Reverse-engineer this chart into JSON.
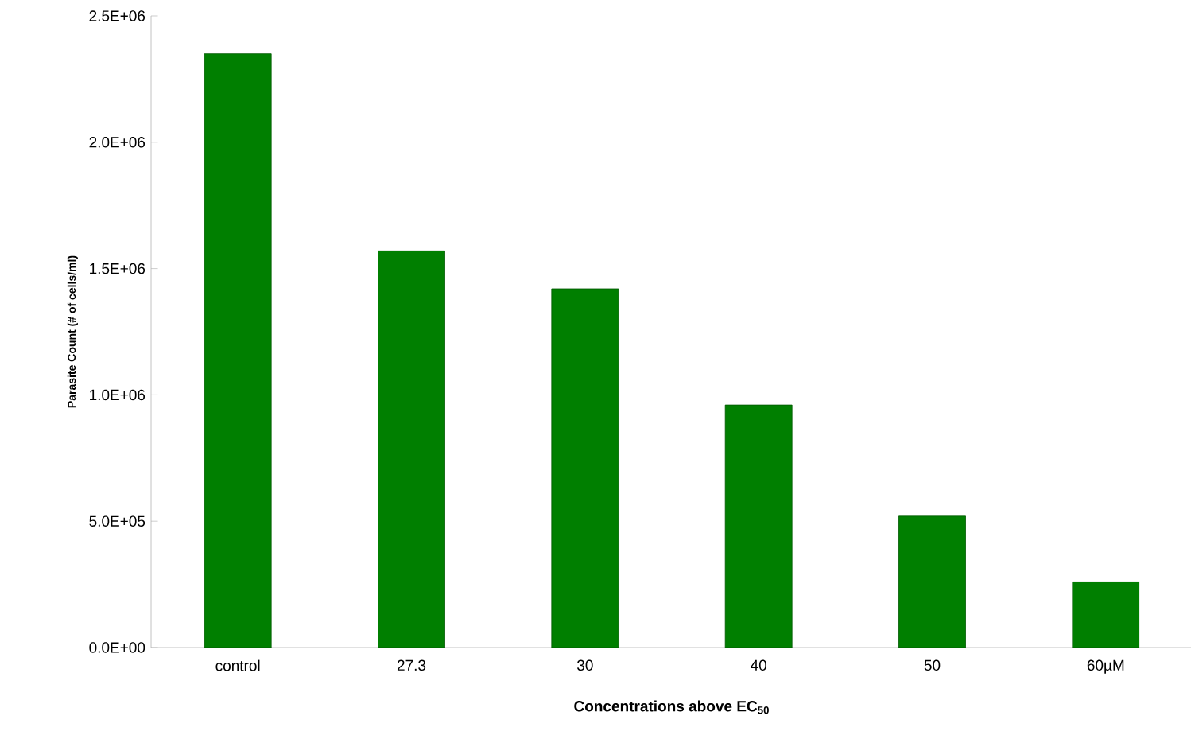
{
  "chart_data": {
    "type": "bar",
    "xlabel": "Concentrations above EC$_{50}$",
    "ylabel": "Parasite Count (# of cells/ml)",
    "categories": [
      "control",
      "27.3",
      "30",
      "40",
      "50",
      "60µM"
    ],
    "values": [
      2350000,
      1570000,
      1420000,
      960000,
      520000,
      260000
    ],
    "color": "#007f00",
    "ylim": [
      0,
      2500000
    ],
    "yticks": [
      {
        "value": 0,
        "label": "0.0E+00"
      },
      {
        "value": 500000,
        "label": "5.0E+05"
      },
      {
        "value": 1000000,
        "label": "1.0E+06"
      },
      {
        "value": 1500000,
        "label": "1.5E+06"
      },
      {
        "value": 2000000,
        "label": "2.0E+06"
      },
      {
        "value": 2500000,
        "label": "2.5E+06"
      }
    ]
  }
}
